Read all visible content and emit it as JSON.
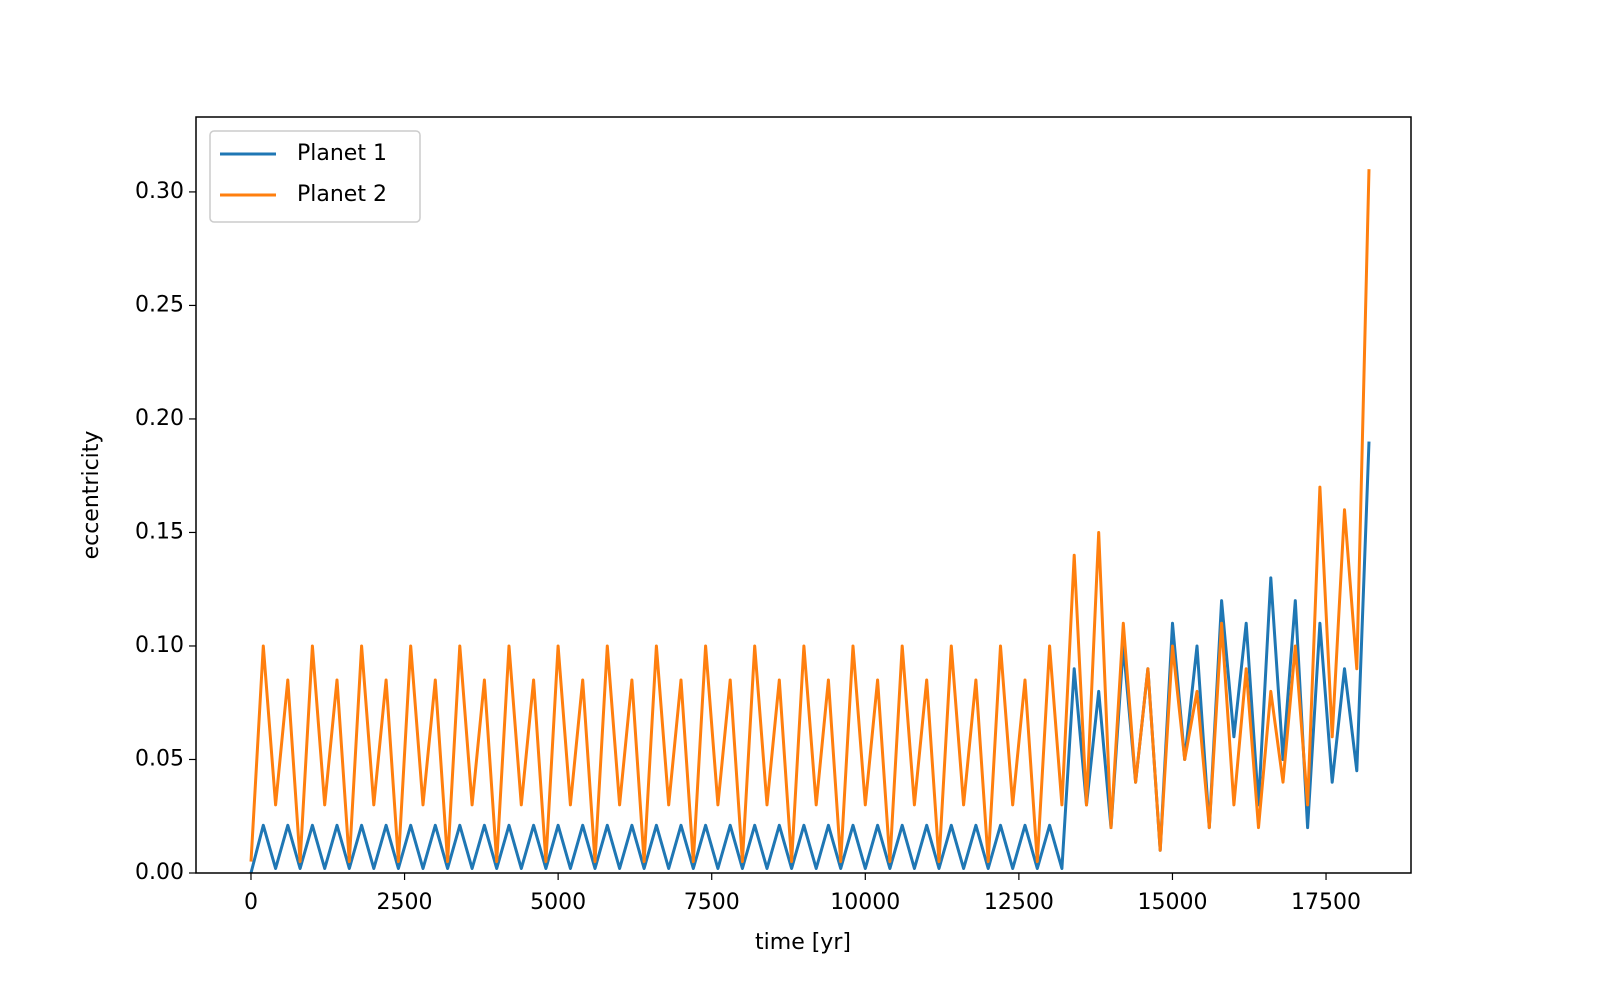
{
  "chart_data": {
    "type": "line",
    "xlabel": "time [yr]",
    "ylabel": "eccentricity",
    "x": [
      0,
      200,
      400,
      600,
      800,
      1000,
      1200,
      1400,
      1600,
      1800,
      2000,
      2200,
      2400,
      2600,
      2800,
      3000,
      3200,
      3400,
      3600,
      3800,
      4000,
      4200,
      4400,
      4600,
      4800,
      5000,
      5200,
      5400,
      5600,
      5800,
      6000,
      6200,
      6400,
      6600,
      6800,
      7000,
      7200,
      7400,
      7600,
      7800,
      8000,
      8200,
      8400,
      8600,
      8800,
      9000,
      9200,
      9400,
      9600,
      9800,
      10000,
      10200,
      10400,
      10600,
      10800,
      11000,
      11200,
      11400,
      11600,
      11800,
      12000,
      12200,
      12400,
      12600,
      12800,
      13000,
      13200,
      13400,
      13600,
      13800,
      14000,
      14200,
      14400,
      14600,
      14800,
      15000,
      15200,
      15400,
      15600,
      15800,
      16000,
      16200,
      16400,
      16600,
      16800,
      17000,
      17200,
      17400,
      17600,
      17800,
      18000,
      18200
    ],
    "series": [
      {
        "name": "Planet 1",
        "color": "#1f77b4",
        "values": [
          0.0,
          0.021,
          0.002,
          0.021,
          0.002,
          0.021,
          0.002,
          0.021,
          0.002,
          0.021,
          0.002,
          0.021,
          0.002,
          0.021,
          0.002,
          0.021,
          0.002,
          0.021,
          0.002,
          0.021,
          0.002,
          0.021,
          0.002,
          0.021,
          0.002,
          0.021,
          0.002,
          0.021,
          0.002,
          0.021,
          0.002,
          0.021,
          0.002,
          0.021,
          0.002,
          0.021,
          0.002,
          0.021,
          0.002,
          0.021,
          0.002,
          0.021,
          0.002,
          0.021,
          0.002,
          0.021,
          0.002,
          0.021,
          0.002,
          0.021,
          0.002,
          0.021,
          0.002,
          0.021,
          0.002,
          0.021,
          0.002,
          0.021,
          0.002,
          0.021,
          0.002,
          0.021,
          0.002,
          0.021,
          0.002,
          0.021,
          0.002,
          0.09,
          0.03,
          0.08,
          0.02,
          0.1,
          0.04,
          0.09,
          0.01,
          0.11,
          0.05,
          0.1,
          0.02,
          0.12,
          0.06,
          0.11,
          0.03,
          0.13,
          0.05,
          0.12,
          0.02,
          0.11,
          0.04,
          0.09,
          0.045,
          0.19
        ]
      },
      {
        "name": "Planet 2",
        "color": "#ff7f0e",
        "values": [
          0.005,
          0.1,
          0.03,
          0.085,
          0.005,
          0.1,
          0.03,
          0.085,
          0.005,
          0.1,
          0.03,
          0.085,
          0.005,
          0.1,
          0.03,
          0.085,
          0.005,
          0.1,
          0.03,
          0.085,
          0.005,
          0.1,
          0.03,
          0.085,
          0.005,
          0.1,
          0.03,
          0.085,
          0.005,
          0.1,
          0.03,
          0.085,
          0.005,
          0.1,
          0.03,
          0.085,
          0.005,
          0.1,
          0.03,
          0.085,
          0.005,
          0.1,
          0.03,
          0.085,
          0.005,
          0.1,
          0.03,
          0.085,
          0.005,
          0.1,
          0.03,
          0.085,
          0.005,
          0.1,
          0.03,
          0.085,
          0.005,
          0.1,
          0.03,
          0.085,
          0.005,
          0.1,
          0.03,
          0.085,
          0.005,
          0.1,
          0.03,
          0.14,
          0.03,
          0.15,
          0.02,
          0.11,
          0.04,
          0.09,
          0.01,
          0.1,
          0.05,
          0.08,
          0.02,
          0.11,
          0.03,
          0.09,
          0.02,
          0.08,
          0.04,
          0.1,
          0.03,
          0.17,
          0.06,
          0.16,
          0.09,
          0.31
        ]
      }
    ],
    "xlim": [
      -895,
      18883
    ],
    "ylim": [
      0,
      0.333
    ],
    "xticks": [
      0,
      2500,
      5000,
      7500,
      10000,
      12500,
      15000,
      17500
    ],
    "yticks": [
      {
        "value": 0,
        "label": "0.00"
      },
      0.05,
      {
        "value": 0.1,
        "label": "0.10"
      },
      0.15,
      {
        "value": 0.2,
        "label": "0.20"
      },
      0.25,
      {
        "value": 0.3,
        "label": "0.30"
      }
    ],
    "legend": "upper left"
  }
}
